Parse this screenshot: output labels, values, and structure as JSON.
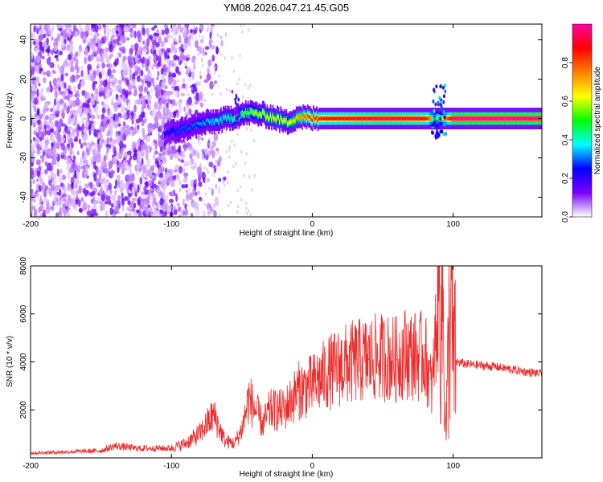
{
  "title": "YM08.2026.047.21.45.G05",
  "chart_data": [
    {
      "type": "heatmap",
      "xlabel": "Height of straight line (km)",
      "ylabel": "Frequency (Hz)",
      "xlim": [
        -200,
        163
      ],
      "ylim": [
        -50,
        48
      ],
      "x_ticks": [
        -200,
        -100,
        0,
        100
      ],
      "y_ticks": [
        -40,
        -20,
        0,
        20,
        40
      ],
      "colorbar": {
        "label": "Normalized spectral amplitude",
        "range": [
          0,
          1
        ],
        "ticks": [
          0.0,
          0.2,
          0.4,
          0.6,
          0.8
        ],
        "colors": [
          "#ffffff",
          "#7b00ff",
          "#0000ff",
          "#00ffff",
          "#00ff00",
          "#ffff00",
          "#ff8000",
          "#ff0000",
          "#ff00a0"
        ]
      },
      "ridge": [
        {
          "x": -105,
          "y": -8,
          "v": 0.22
        },
        {
          "x": -95,
          "y": -6,
          "v": 0.28
        },
        {
          "x": -85,
          "y": -4,
          "v": 0.3
        },
        {
          "x": -75,
          "y": -2,
          "v": 0.35
        },
        {
          "x": -65,
          "y": -1,
          "v": 0.4
        },
        {
          "x": -55,
          "y": 1,
          "v": 0.45
        },
        {
          "x": -45,
          "y": 3,
          "v": 0.55
        },
        {
          "x": -35,
          "y": 2,
          "v": 0.6
        },
        {
          "x": -25,
          "y": 0,
          "v": 0.65
        },
        {
          "x": -18,
          "y": -2,
          "v": 0.6
        },
        {
          "x": -10,
          "y": 1,
          "v": 0.7
        },
        {
          "x": 0,
          "y": 0,
          "v": 0.85
        },
        {
          "x": 50,
          "y": 0,
          "v": 0.95
        },
        {
          "x": 80,
          "y": 0,
          "v": 0.9
        },
        {
          "x": 90,
          "y": 0,
          "v": 0.5
        },
        {
          "x": 100,
          "y": 0,
          "v": 1.0
        },
        {
          "x": 163,
          "y": 0,
          "v": 1.0
        }
      ],
      "grid": false
    },
    {
      "type": "line",
      "xlabel": "Height of straight line (km)",
      "ylabel": "SNR (10 * v/v)",
      "xlim": [
        -200,
        163
      ],
      "ylim": [
        0,
        8000
      ],
      "x_ticks": [
        -200,
        -100,
        0,
        100
      ],
      "y_ticks": [
        2000,
        4000,
        6000,
        8000
      ],
      "series": [
        {
          "color": "#ee2a2a",
          "x": [
            -200,
            -175,
            -150,
            -140,
            -125,
            -100,
            -90,
            -80,
            -70,
            -62,
            -55,
            -50,
            -45,
            -35,
            -30,
            -20,
            -10,
            0,
            10,
            20,
            30,
            40,
            50,
            60,
            65,
            70,
            75,
            80,
            85,
            88,
            92,
            95,
            98,
            100,
            102,
            110,
            130,
            150,
            163
          ],
          "y": [
            200,
            250,
            300,
            500,
            400,
            400,
            600,
            1000,
            1800,
            700,
            600,
            1200,
            2500,
            1400,
            2000,
            2000,
            2800,
            3000,
            3500,
            3800,
            4000,
            4100,
            4200,
            4100,
            4400,
            4300,
            4200,
            4300,
            2800,
            5500,
            7800,
            1000,
            7000,
            4100,
            4000,
            3900,
            3800,
            3600,
            3500
          ]
        }
      ],
      "grid": false
    }
  ]
}
